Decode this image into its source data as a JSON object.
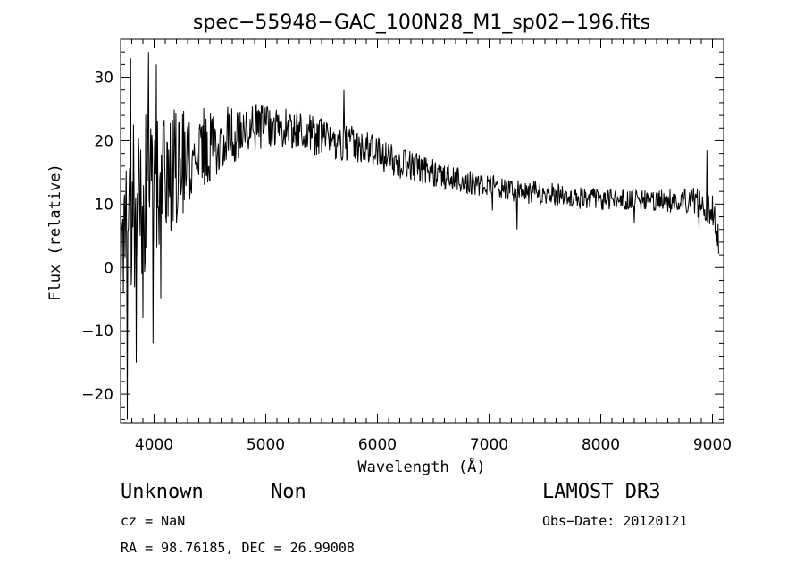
{
  "chart_data": {
    "type": "line",
    "title": "spec−55948−GAC_100N28_M1_sp02−196.fits",
    "xlabel": "Wavelength (Å)",
    "ylabel": "Flux (relative)",
    "xlim": [
      3700,
      9100
    ],
    "ylim": [
      -24.5,
      36
    ],
    "xticks": [
      4000,
      5000,
      6000,
      7000,
      8000,
      9000
    ],
    "xtick_labels": [
      "4000",
      "5000",
      "6000",
      "7000",
      "8000",
      "9000"
    ],
    "yticks": [
      -20,
      -10,
      0,
      10,
      20,
      30
    ],
    "ytick_labels": [
      "−20",
      "−10",
      "0",
      "10",
      "20",
      "30"
    ],
    "continuum": {
      "x": [
        3700,
        3800,
        3900,
        4000,
        4200,
        4400,
        4600,
        4800,
        5000,
        5200,
        5400,
        5600,
        5800,
        6000,
        6200,
        6400,
        6600,
        6800,
        7000,
        7200,
        7400,
        7600,
        7800,
        8000,
        8200,
        8400,
        8600,
        8800,
        9000,
        9060
      ],
      "y": [
        6,
        9,
        12,
        13,
        16,
        18.5,
        20.5,
        21.5,
        22.5,
        22,
        21,
        20,
        19.5,
        18,
        16.5,
        15.5,
        14.5,
        13.5,
        13,
        12,
        11.8,
        11.5,
        11,
        10.8,
        10.5,
        10.5,
        10.5,
        10.8,
        9,
        4
      ]
    },
    "noise_envelope": {
      "x": [
        3700,
        3900,
        4100,
        4300,
        4500,
        4700,
        5000,
        5500,
        6000,
        6500,
        7000,
        7500,
        8000,
        8500,
        9000,
        9060
      ],
      "amplitude": [
        12,
        15,
        11,
        8,
        6,
        4.5,
        3.5,
        3,
        2.6,
        2.2,
        1.8,
        1.8,
        1.7,
        1.7,
        2.5,
        3
      ]
    },
    "spikes": [
      {
        "x": 3760,
        "y": -24
      },
      {
        "x": 3790,
        "y": 33
      },
      {
        "x": 3840,
        "y": -15
      },
      {
        "x": 3900,
        "y": -8
      },
      {
        "x": 3950,
        "y": 34
      },
      {
        "x": 3990,
        "y": -12
      },
      {
        "x": 4020,
        "y": 32
      },
      {
        "x": 4060,
        "y": -5
      },
      {
        "x": 5700,
        "y": 28
      },
      {
        "x": 7030,
        "y": 9
      },
      {
        "x": 7250,
        "y": 6
      },
      {
        "x": 8300,
        "y": 7
      },
      {
        "x": 8880,
        "y": 6
      },
      {
        "x": 8950,
        "y": 18.5
      }
    ]
  },
  "info": {
    "object_class": "Unknown",
    "subclass": "Non",
    "survey": "LAMOST DR3",
    "cz": "cz = NaN",
    "obs_date": "Obs−Date: 20120121",
    "coords": "RA =  98.76185, DEC =  26.99008"
  }
}
